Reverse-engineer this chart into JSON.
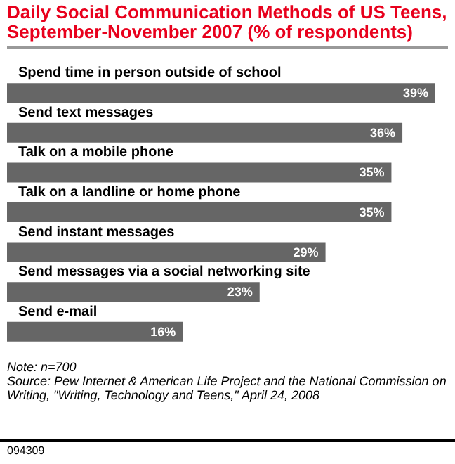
{
  "chart_data": {
    "type": "bar",
    "orientation": "horizontal",
    "title": "Daily Social Communication Methods of US Teens, September-November 2007 (% of respondents)",
    "categories": [
      "Spend time in person outside of school",
      "Send text messages",
      "Talk on a mobile phone",
      "Talk on a landline or home phone",
      "Send instant messages",
      "Send messages via a social networking site",
      "Send e-mail"
    ],
    "values": [
      39,
      36,
      35,
      35,
      29,
      23,
      16
    ],
    "value_labels": [
      "39%",
      "36%",
      "35%",
      "35%",
      "29%",
      "23%",
      "16%"
    ],
    "color": "#666666",
    "annotations": [
      "Note: n=700",
      "Source: Pew Internet & American Life Project and the National Commission on Writing, \"Writing, Technology and Teens,\" April 24, 2008",
      "094309"
    ]
  }
}
